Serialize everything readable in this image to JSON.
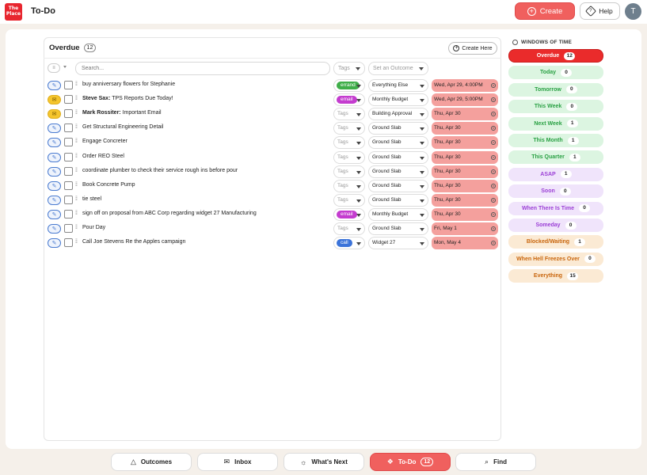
{
  "header": {
    "logo_text": "The Place",
    "title": "To-Do",
    "create_label": "Create",
    "help_label": "Help",
    "avatar_initial": "T"
  },
  "panel": {
    "title": "Overdue",
    "count": "12",
    "create_here_label": "Create Here",
    "search_placeholder": "Search...",
    "tags_placeholder": "Tags",
    "outcome_placeholder": "Set an Outcome"
  },
  "rows": [
    {
      "type": "task",
      "title_bold": "",
      "title": "buy anniversary flowers for Stephanie",
      "tag": "errand",
      "tag_color": "#3fae49",
      "outcome": "Everything Else",
      "date": "Wed, Apr 29, 4:00PM"
    },
    {
      "type": "mail",
      "title_bold": "Steve Sax:",
      "title": " TPS Reports Due Today!",
      "tag": "email",
      "tag_color": "#c43ccf",
      "outcome": "Monthly Budget",
      "date": "Wed, Apr 29, 5:00PM"
    },
    {
      "type": "mail",
      "title_bold": "Mark Rossiter:",
      "title": " Important Email",
      "tag": "",
      "tag_color": "",
      "outcome": "Building Approval",
      "date": "Thu, Apr 30"
    },
    {
      "type": "task",
      "title_bold": "",
      "title": "Get Structural Engineering Detail",
      "tag": "",
      "tag_color": "",
      "outcome": "Ground Slab",
      "date": "Thu, Apr 30"
    },
    {
      "type": "task",
      "title_bold": "",
      "title": "Engage Concreter",
      "tag": "",
      "tag_color": "",
      "outcome": "Ground Slab",
      "date": "Thu, Apr 30"
    },
    {
      "type": "task",
      "title_bold": "",
      "title": "Order REO Steel",
      "tag": "",
      "tag_color": "",
      "outcome": "Ground Slab",
      "date": "Thu, Apr 30"
    },
    {
      "type": "task",
      "title_bold": "",
      "title": "coordinate plumber to check their service rough ins before pour",
      "tag": "",
      "tag_color": "",
      "outcome": "Ground Slab",
      "date": "Thu, Apr 30"
    },
    {
      "type": "task",
      "title_bold": "",
      "title": "Book Concrete Pump",
      "tag": "",
      "tag_color": "",
      "outcome": "Ground Slab",
      "date": "Thu, Apr 30"
    },
    {
      "type": "task",
      "title_bold": "",
      "title": "tie steel",
      "tag": "",
      "tag_color": "",
      "outcome": "Ground Slab",
      "date": "Thu, Apr 30"
    },
    {
      "type": "task",
      "title_bold": "",
      "title": "sign off on proposal from ABC Corp regarding widget 27 Manufacturing",
      "tag": "email",
      "tag_color": "#c43ccf",
      "outcome": "Monthly Budget",
      "date": "Thu, Apr 30"
    },
    {
      "type": "task",
      "title_bold": "",
      "title": "Pour Day",
      "tag": "",
      "tag_color": "",
      "outcome": "Ground Slab",
      "date": "Fri, May 1"
    },
    {
      "type": "task",
      "title_bold": "",
      "title": "Call Joe Stevens Re the Apples campaign",
      "tag": "call",
      "tag_color": "#3b73d9",
      "outcome": "Widget 27",
      "date": "Mon, May 4"
    }
  ],
  "tags_label": "Tags",
  "windows": {
    "heading": "WINDOWS OF TIME",
    "items": [
      {
        "label": "Overdue",
        "count": "12",
        "bg": "#ea2b2b",
        "fg": "#ffffff"
      },
      {
        "label": "Today",
        "count": "0",
        "bg": "#dcf5e1",
        "fg": "#2aa144"
      },
      {
        "label": "Tomorrow",
        "count": "0",
        "bg": "#dcf5e1",
        "fg": "#2aa144"
      },
      {
        "label": "This Week",
        "count": "0",
        "bg": "#dcf5e1",
        "fg": "#2aa144"
      },
      {
        "label": "Next Week",
        "count": "1",
        "bg": "#dcf5e1",
        "fg": "#2aa144"
      },
      {
        "label": "This Month",
        "count": "1",
        "bg": "#dcf5e1",
        "fg": "#2aa144"
      },
      {
        "label": "This Quarter",
        "count": "1",
        "bg": "#dcf5e1",
        "fg": "#2aa144"
      },
      {
        "label": "ASAP",
        "count": "1",
        "bg": "#f0e4fb",
        "fg": "#9b3fd6"
      },
      {
        "label": "Soon",
        "count": "0",
        "bg": "#f0e4fb",
        "fg": "#9b3fd6"
      },
      {
        "label": "When There Is Time",
        "count": "0",
        "bg": "#f0e4fb",
        "fg": "#9b3fd6"
      },
      {
        "label": "Someday",
        "count": "0",
        "bg": "#f0e4fb",
        "fg": "#9b3fd6"
      },
      {
        "label": "Blocked/Waiting",
        "count": "1",
        "bg": "#fbead4",
        "fg": "#c9660d"
      },
      {
        "label": "When Hell Freezes Over",
        "count": "0",
        "bg": "#fbead4",
        "fg": "#c9660d"
      },
      {
        "label": "Everything",
        "count": "15",
        "bg": "#fbead4",
        "fg": "#c9660d"
      }
    ]
  },
  "bottom_nav": [
    {
      "label": "Outcomes",
      "icon": "triangle-icon",
      "glyph": "△"
    },
    {
      "label": "Inbox",
      "icon": "inbox-icon",
      "glyph": "✉"
    },
    {
      "label": "What's  Next",
      "icon": "sunrise-icon",
      "glyph": "☼"
    },
    {
      "label": "To-Do",
      "icon": "layers-icon",
      "glyph": "❖",
      "count": "12",
      "active": true
    },
    {
      "label": "Find",
      "icon": "search-icon",
      "glyph": "⌕"
    }
  ]
}
